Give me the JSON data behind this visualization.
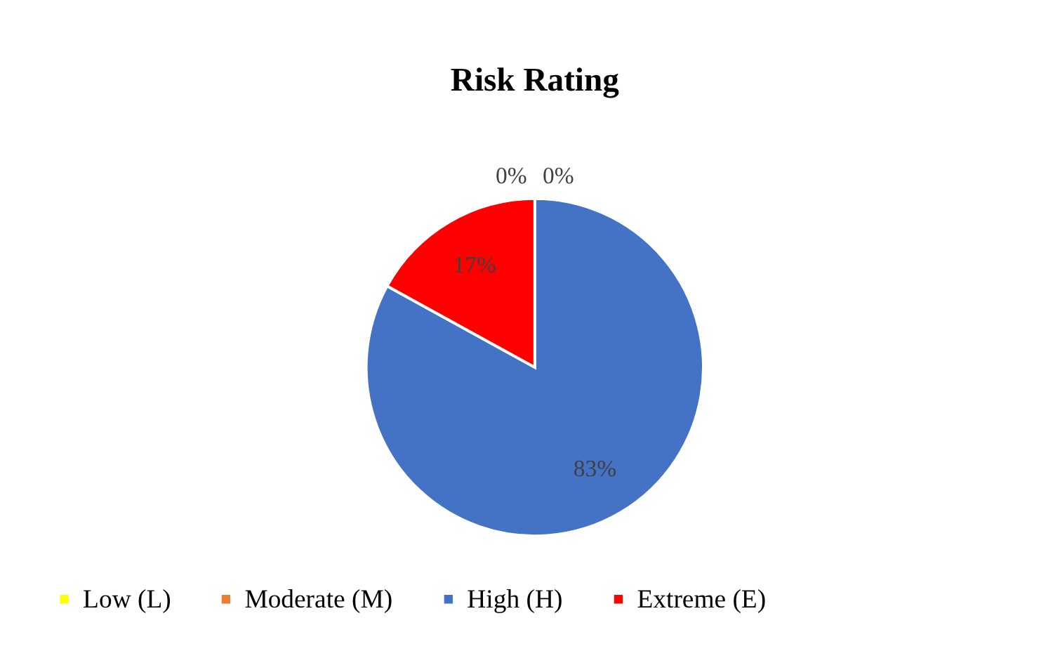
{
  "chart_data": {
    "type": "pie",
    "title": "Risk Rating",
    "categories": [
      "Low (L)",
      "Moderate (M)",
      "High (H)",
      "Extreme (E)"
    ],
    "values": [
      0,
      0,
      83,
      17
    ],
    "colors": [
      "#ffff00",
      "#ed7d31",
      "#4472c4",
      "#ff0000"
    ],
    "value_labels": [
      "0%",
      "0%",
      "83%",
      "17%"
    ],
    "legend": "bottom"
  }
}
